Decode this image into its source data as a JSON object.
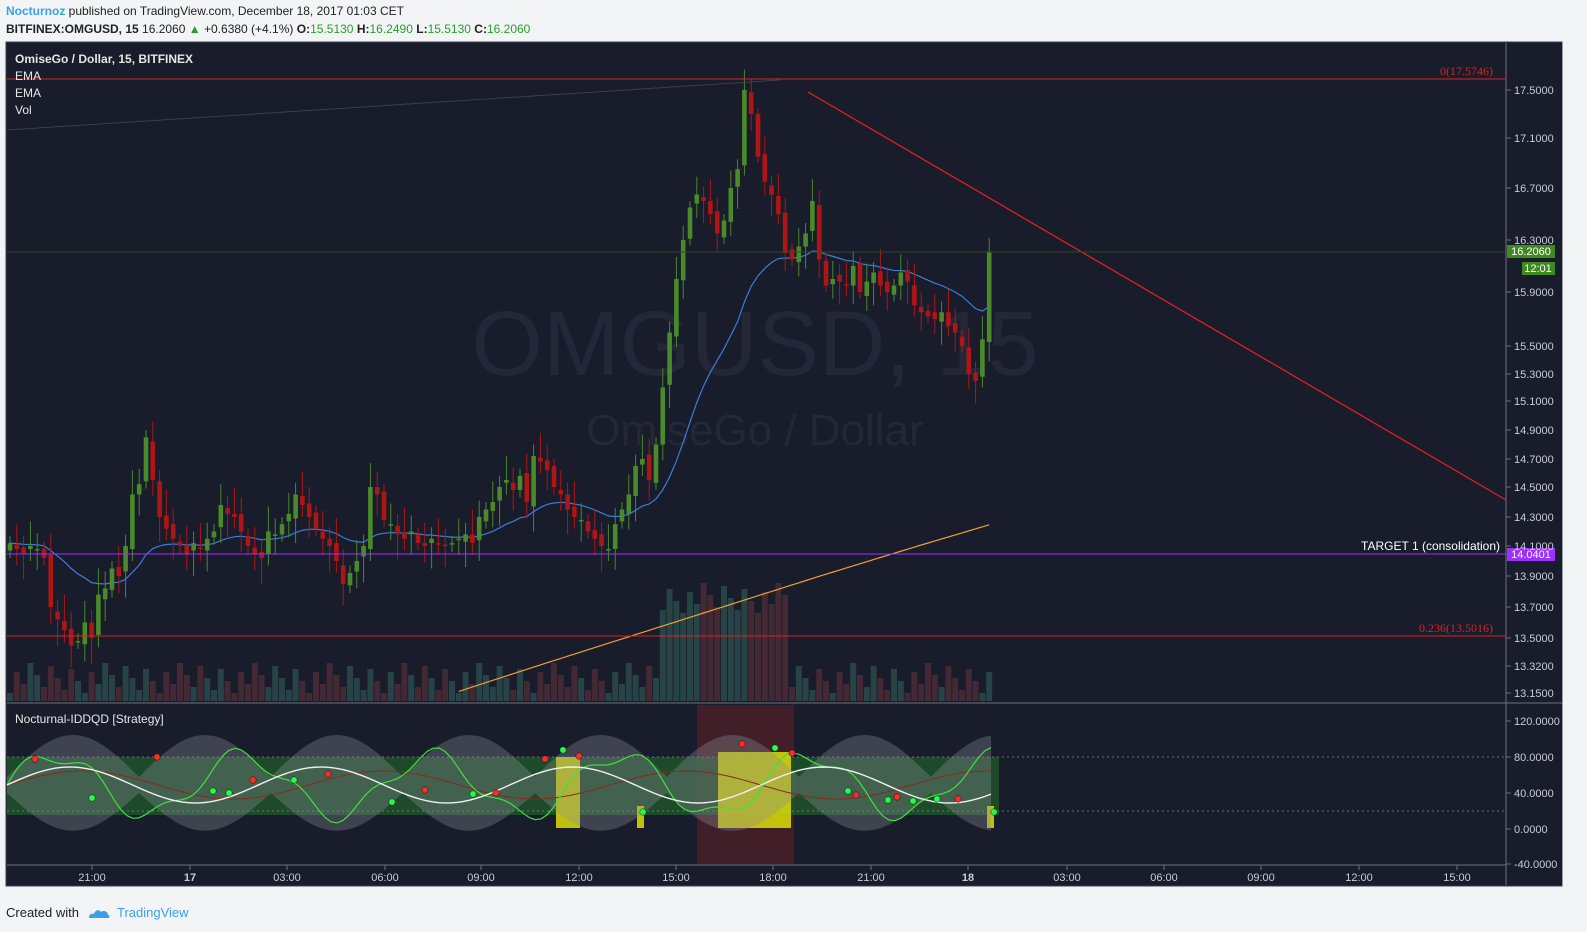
{
  "header": {
    "author": "Nocturnoz",
    "published": "published on TradingView.com, December 18, 2017 01:03 CET",
    "symbol": "BITFINEX:OMGUSD, 15",
    "price": "16.2060",
    "arrow": "▲",
    "change": "+0.6380 (+4.1%)",
    "o_label": "O:",
    "o": "15.5130",
    "h_label": "H:",
    "h": "16.2490",
    "l_label": "L:",
    "l": "15.5130",
    "c_label": "C:",
    "c": "16.2060"
  },
  "legend": {
    "title": "OmiseGo / Dollar, 15, BITFINEX",
    "items": [
      "EMA",
      "EMA",
      "Vol"
    ]
  },
  "watermark": {
    "symbol": "OMGUSD, 15",
    "name": "OmiseGo / Dollar"
  },
  "indicator": {
    "title": "Nocturnal-IDDQD [Strategy]"
  },
  "colors": {
    "background": "#181c2b",
    "up": "#4a8a2a",
    "down": "#b01515",
    "ema_fast": "#3b7dd8",
    "ema_slow": "#f0a030",
    "fib": "#e02020",
    "target": "#9b30ff",
    "trendline": "#e02020",
    "price_label": "#3e8a1e"
  },
  "chart_data": {
    "type": "candlestick",
    "title": "OmiseGo / Dollar, 15, BITFINEX",
    "price_axis": [
      "17.5000",
      "17.1000",
      "16.7000",
      "16.3000",
      "15.9000",
      "15.5000",
      "15.3000",
      "15.1000",
      "14.9000",
      "14.7000",
      "14.5000",
      "14.3000",
      "14.1000",
      "13.9000",
      "13.7000",
      "13.5000",
      "13.3200",
      "13.1500"
    ],
    "price_axis_values": [
      17.5,
      17.1,
      16.7,
      16.3,
      15.9,
      15.5,
      15.3,
      15.1,
      14.9,
      14.7,
      14.5,
      14.3,
      14.1,
      13.9,
      13.7,
      13.5,
      13.32,
      13.15
    ],
    "time_axis": [
      "21:00",
      "17",
      "03:00",
      "06:00",
      "09:00",
      "12:00",
      "15:00",
      "18:00",
      "21:00",
      "18",
      "03:00",
      "06:00",
      "09:00",
      "12:00",
      "15:00"
    ],
    "current_price": "16.2060",
    "countdown": "12:01",
    "fib_levels": [
      {
        "label": "0(17.5746)",
        "value": 17.5746
      },
      {
        "label": "0.236(13.5016)",
        "value": 13.5016
      }
    ],
    "target": {
      "label": "TARGET 1 (consolidation)",
      "value": 14.0401,
      "value_label": "14.0401"
    },
    "indicator_axis": [
      "120.0000",
      "80.0000",
      "40.0000",
      "0.0000",
      "-40.0000"
    ],
    "indicator_axis_values": [
      120,
      80,
      40,
      0,
      -40
    ],
    "closes": [
      14.12,
      14.08,
      14.05,
      14.1,
      14.08,
      14.02,
      13.7,
      13.62,
      13.55,
      13.45,
      13.48,
      13.6,
      13.5,
      13.78,
      13.82,
      13.95,
      13.9,
      14.1,
      14.45,
      14.52,
      14.85,
      14.55,
      14.3,
      14.22,
      14.15,
      14.1,
      14.05,
      14.12,
      14.08,
      14.15,
      14.2,
      14.38,
      14.32,
      14.3,
      14.2,
      14.1,
      14.05,
      14.02,
      14.2,
      14.18,
      14.25,
      14.32,
      14.45,
      14.38,
      14.3,
      14.22,
      14.15,
      14.1,
      14.0,
      13.85,
      13.92,
      14.0,
      14.1,
      14.5,
      14.45,
      14.28,
      14.25,
      14.18,
      14.15,
      14.2,
      14.12,
      14.1,
      14.15,
      14.12,
      14.1,
      14.12,
      14.15,
      14.18,
      14.12,
      14.3,
      14.35,
      14.4,
      14.5,
      14.55,
      14.48,
      14.58,
      14.4,
      14.72,
      14.68,
      14.62,
      14.5,
      14.45,
      14.35,
      14.3,
      14.28,
      14.2,
      14.15,
      14.1,
      14.08,
      14.25,
      14.35,
      14.45,
      14.65,
      14.7,
      14.55,
      14.8,
      15.2,
      15.6,
      16.0,
      16.3,
      16.55,
      16.65,
      16.6,
      16.5,
      16.35,
      16.45,
      16.7,
      16.85,
      17.5,
      17.3,
      16.95,
      16.75,
      16.65,
      16.5,
      16.2,
      16.15,
      16.25,
      16.35,
      16.6,
      16.15,
      15.95,
      16.0,
      15.98,
      15.95,
      16.1,
      15.9,
      15.98,
      16.05,
      15.95,
      15.9,
      15.95,
      16.05,
      15.98,
      15.8,
      15.75,
      15.72,
      15.7,
      15.75,
      15.65,
      15.6,
      15.5,
      15.3,
      15.25,
      15.55,
      16.206
    ],
    "series": [
      {
        "name": "EMA",
        "type": "line"
      },
      {
        "name": "EMA",
        "type": "line"
      },
      {
        "name": "Vol",
        "type": "bar"
      }
    ]
  }
}
